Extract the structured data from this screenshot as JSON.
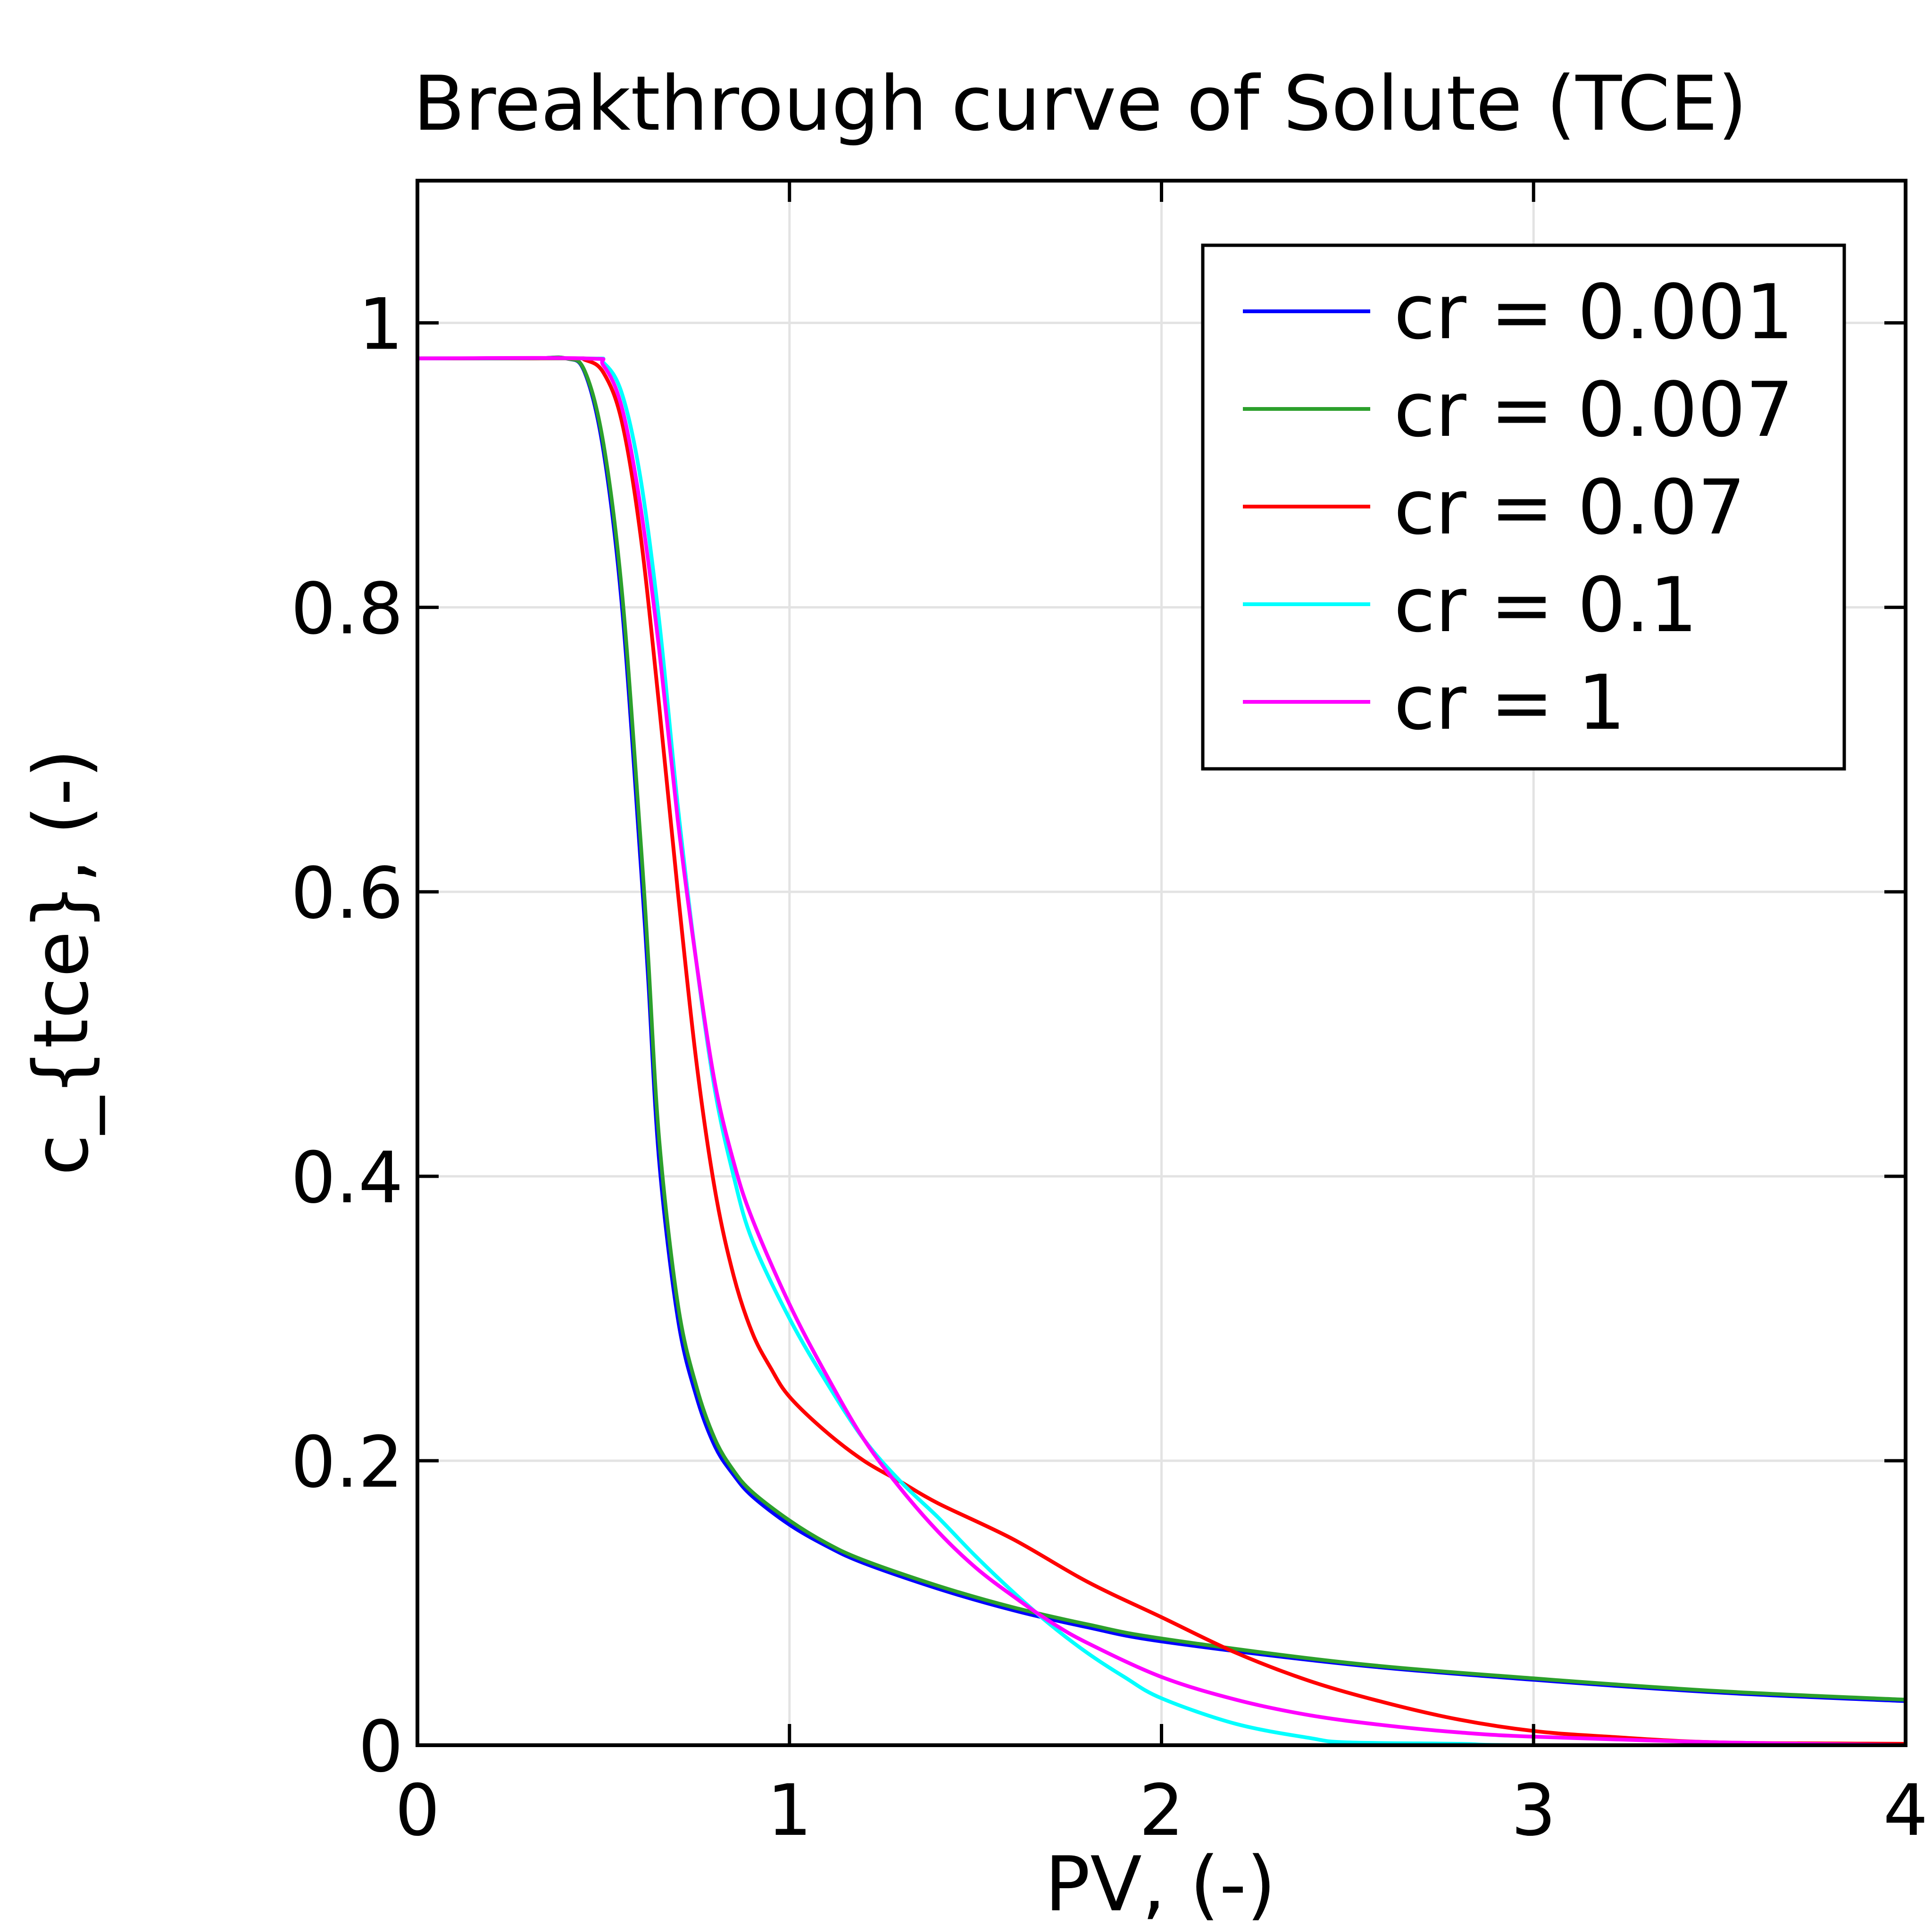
{
  "chart_data": {
    "type": "line",
    "title": "Breakthrough curve of Solute (TCE)",
    "xlabel": "PV, (-)",
    "ylabel": "c_{tce}, (-)",
    "xlim": [
      0,
      4
    ],
    "ylim": [
      0,
      1.1
    ],
    "xticks": [
      0,
      1,
      2,
      3,
      4
    ],
    "xtick_labels": [
      "0",
      "1",
      "2",
      "3",
      "4"
    ],
    "yticks": [
      0,
      0.2,
      0.4,
      0.6,
      0.8,
      1
    ],
    "ytick_labels": [
      "0",
      "0.2",
      "0.4",
      "0.6",
      "0.8",
      "1"
    ],
    "grid": true,
    "legend_position": "top-right",
    "series": [
      {
        "name": "cr = 0.001",
        "color": "#0000ff",
        "x": [
          0,
          0.3,
          0.4,
          0.45,
          0.5,
          0.55,
          0.6,
          0.62,
          0.65,
          0.7,
          0.75,
          0.8,
          0.85,
          0.9,
          1.0,
          1.1,
          1.2,
          1.4,
          1.6,
          1.8,
          2.0,
          2.5,
          3.0,
          3.5,
          4.0
        ],
        "y": [
          0.975,
          0.975,
          0.975,
          0.965,
          0.91,
          0.8,
          0.62,
          0.54,
          0.41,
          0.3,
          0.245,
          0.21,
          0.19,
          0.175,
          0.155,
          0.14,
          0.128,
          0.11,
          0.095,
          0.083,
          0.073,
          0.057,
          0.046,
          0.037,
          0.031
        ]
      },
      {
        "name": "cr = 0.007",
        "color": "#2ca02c",
        "x": [
          0,
          0.3,
          0.4,
          0.45,
          0.5,
          0.55,
          0.6,
          0.62,
          0.65,
          0.7,
          0.75,
          0.8,
          0.85,
          0.9,
          1.0,
          1.1,
          1.2,
          1.4,
          1.6,
          1.8,
          2.0,
          2.5,
          3.0,
          3.5,
          4.0
        ],
        "y": [
          0.975,
          0.975,
          0.975,
          0.966,
          0.915,
          0.81,
          0.635,
          0.555,
          0.425,
          0.31,
          0.252,
          0.215,
          0.193,
          0.178,
          0.158,
          0.142,
          0.13,
          0.112,
          0.097,
          0.085,
          0.075,
          0.058,
          0.047,
          0.038,
          0.032
        ]
      },
      {
        "name": "cr = 0.07",
        "color": "#ff0000",
        "x": [
          0,
          0.4,
          0.45,
          0.5,
          0.55,
          0.6,
          0.65,
          0.7,
          0.75,
          0.8,
          0.85,
          0.9,
          0.95,
          1.0,
          1.1,
          1.2,
          1.3,
          1.4,
          1.6,
          1.8,
          2.0,
          2.2,
          2.4,
          2.6,
          2.8,
          3.0,
          3.2,
          3.5,
          4.0
        ],
        "y": [
          0.975,
          0.975,
          0.974,
          0.965,
          0.93,
          0.85,
          0.73,
          0.6,
          0.48,
          0.39,
          0.33,
          0.29,
          0.265,
          0.245,
          0.22,
          0.2,
          0.185,
          0.17,
          0.145,
          0.115,
          0.09,
          0.065,
          0.045,
          0.03,
          0.018,
          0.01,
          0.006,
          0.002,
          0.001
        ]
      },
      {
        "name": "cr = 0.1",
        "color": "#00ffff",
        "x": [
          0,
          0.45,
          0.5,
          0.55,
          0.6,
          0.65,
          0.7,
          0.75,
          0.8,
          0.85,
          0.9,
          1.0,
          1.1,
          1.2,
          1.3,
          1.4,
          1.5,
          1.6,
          1.7,
          1.8,
          1.9,
          2.0,
          2.2,
          2.4,
          2.5,
          2.8,
          3.0,
          4.0
        ],
        "y": [
          0.975,
          0.975,
          0.972,
          0.95,
          0.89,
          0.79,
          0.66,
          0.55,
          0.46,
          0.4,
          0.355,
          0.3,
          0.255,
          0.215,
          0.185,
          0.16,
          0.133,
          0.108,
          0.085,
          0.065,
          0.048,
          0.033,
          0.015,
          0.005,
          0.002,
          0.001,
          0.0,
          0.0
        ]
      },
      {
        "name": "cr = 1",
        "color": "#ff00ff",
        "x": [
          0,
          0.45,
          0.5,
          0.55,
          0.6,
          0.65,
          0.7,
          0.75,
          0.8,
          0.85,
          0.9,
          1.0,
          1.1,
          1.2,
          1.3,
          1.4,
          1.5,
          1.6,
          1.7,
          1.8,
          2.0,
          2.2,
          2.4,
          2.6,
          2.8,
          3.0,
          3.5,
          4.0
        ],
        "y": [
          0.975,
          0.975,
          0.97,
          0.94,
          0.87,
          0.77,
          0.65,
          0.55,
          0.465,
          0.41,
          0.37,
          0.31,
          0.26,
          0.215,
          0.18,
          0.15,
          0.125,
          0.105,
          0.087,
          0.072,
          0.048,
          0.032,
          0.021,
          0.014,
          0.009,
          0.006,
          0.002,
          0.0
        ]
      }
    ]
  }
}
